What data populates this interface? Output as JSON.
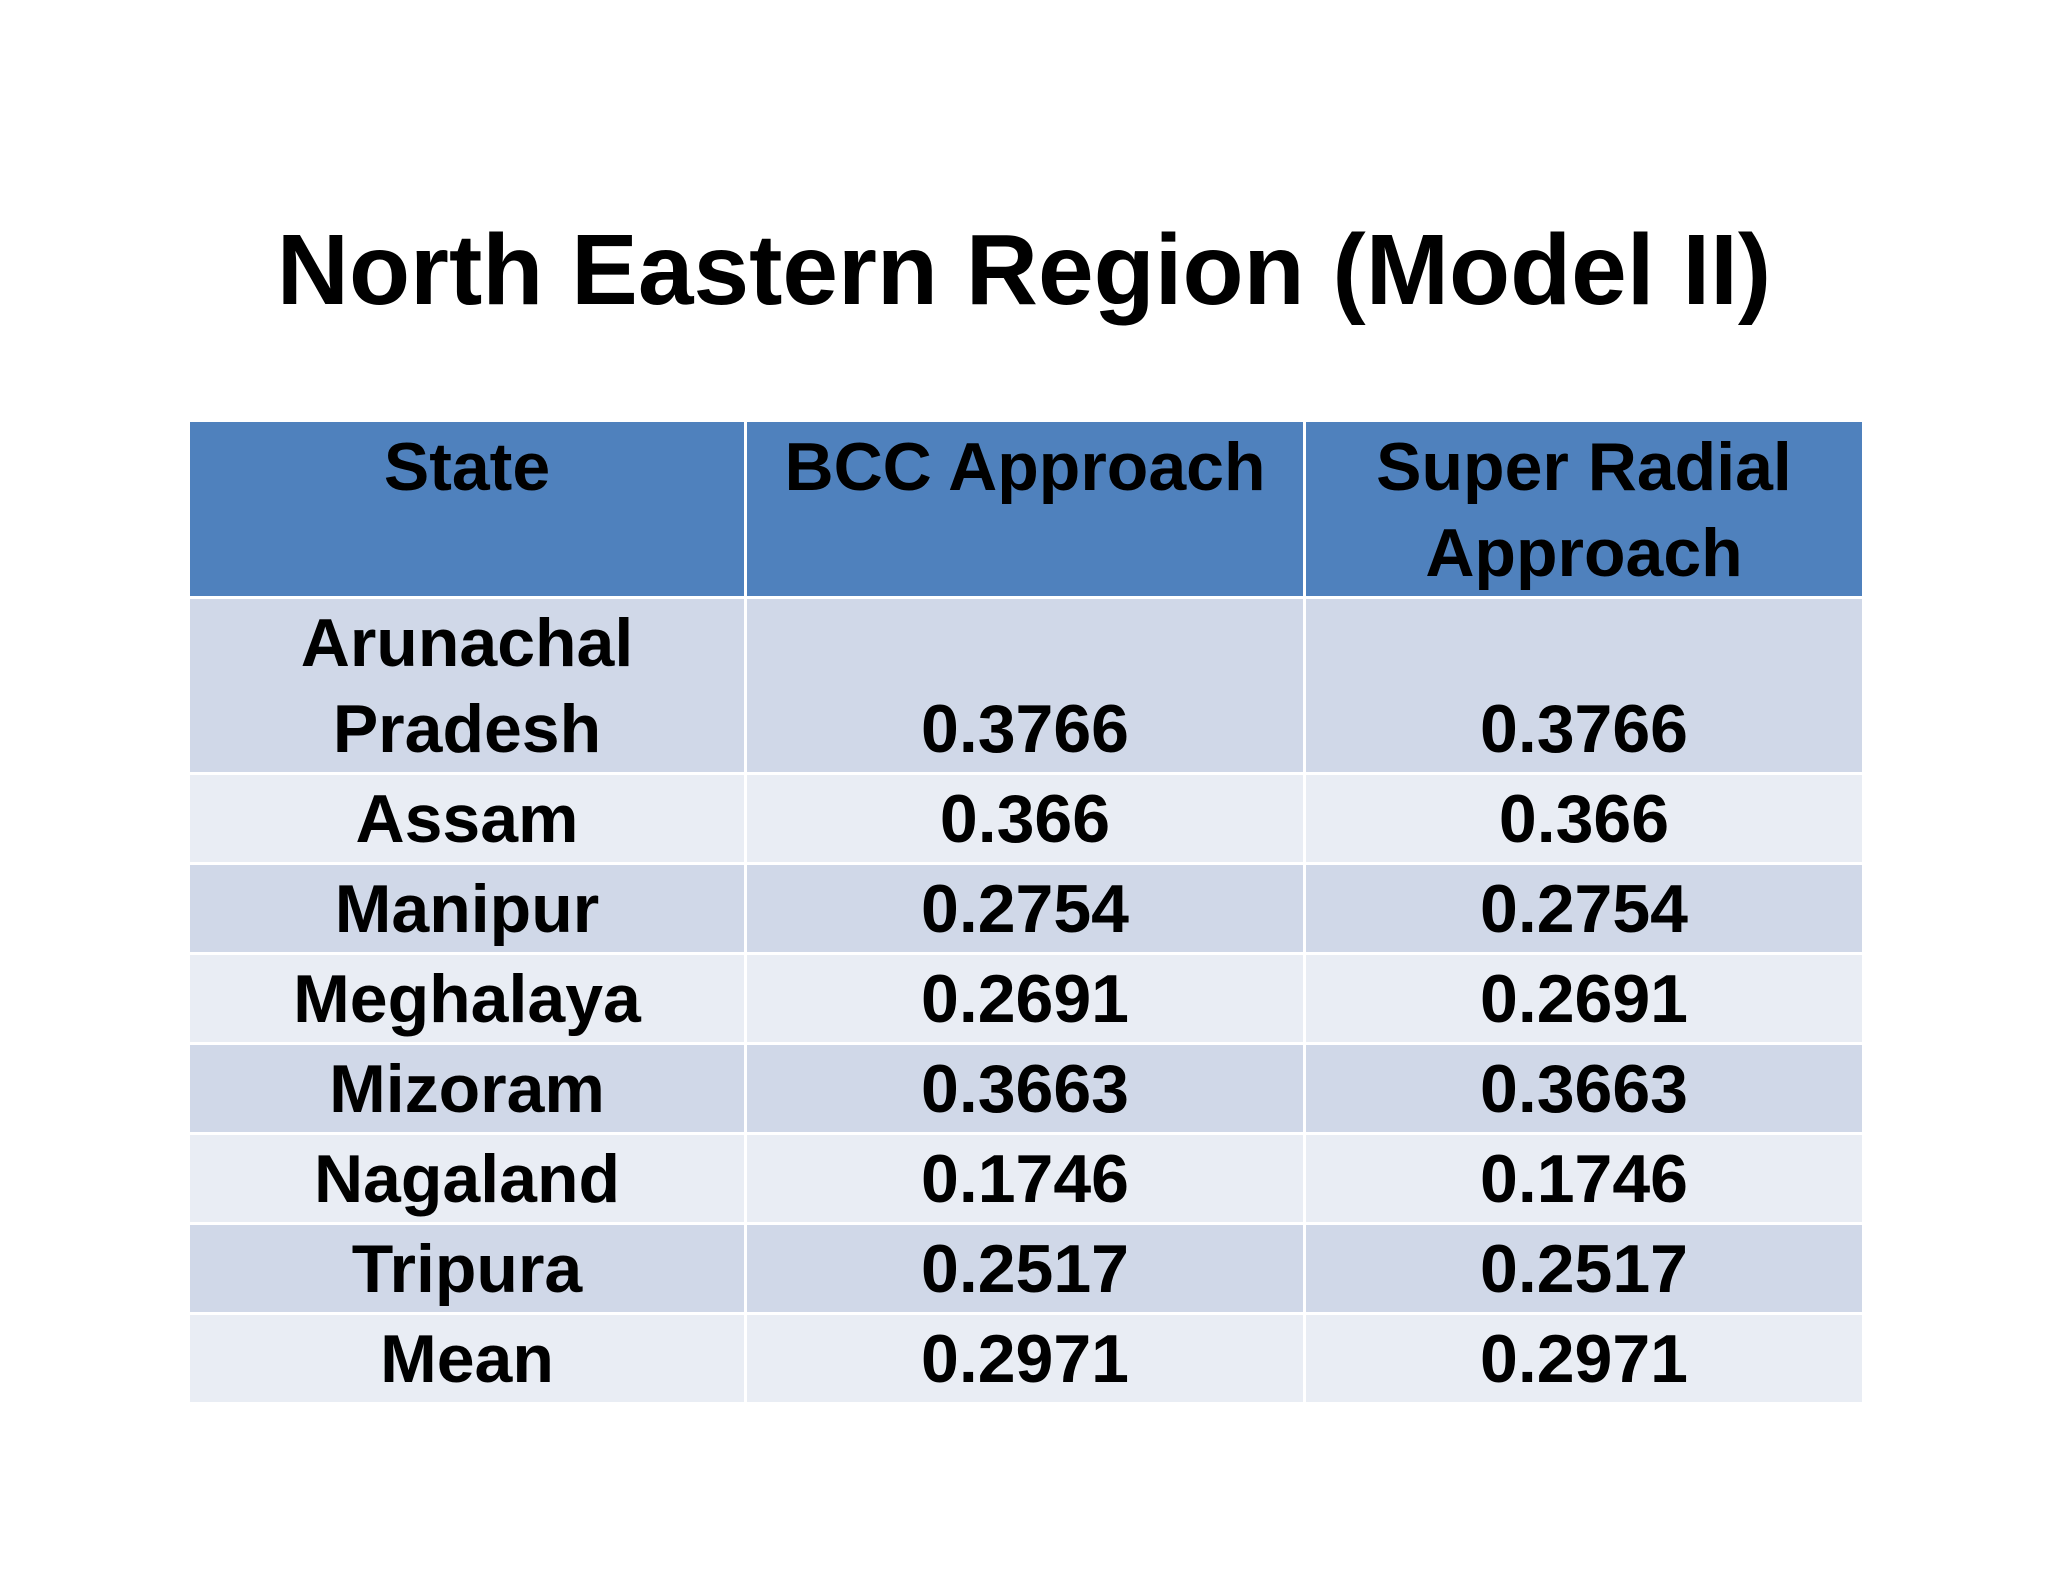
{
  "title": "North Eastern Region (Model II)",
  "table": {
    "headers": [
      "State",
      "BCC Approach",
      "Super Radial Approach"
    ],
    "rows": [
      [
        "Arunachal Pradesh",
        "0.3766",
        "0.3766"
      ],
      [
        "Assam",
        "0.366",
        "0.366"
      ],
      [
        "Manipur",
        "0.2754",
        "0.2754"
      ],
      [
        "Meghalaya",
        "0.2691",
        "0.2691"
      ],
      [
        "Mizoram",
        "0.3663",
        "0.3663"
      ],
      [
        "Nagaland",
        "0.1746",
        "0.1746"
      ],
      [
        "Tripura",
        "0.2517",
        "0.2517"
      ],
      [
        "Mean",
        "0.2971",
        "0.2971"
      ]
    ]
  },
  "colors": {
    "header_fill": "#4f81bd",
    "row_fill_odd": "#d0d8e8",
    "row_fill_even": "#e9edf4"
  }
}
